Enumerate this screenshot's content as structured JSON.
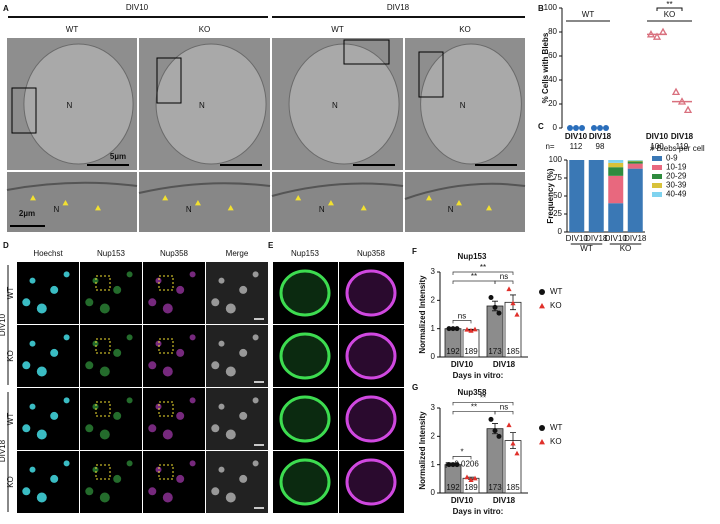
{
  "figure": {
    "panel_labels": [
      "A",
      "B",
      "C",
      "D",
      "E",
      "F",
      "G"
    ],
    "A": {
      "time_points": [
        "DIV10",
        "DIV18"
      ],
      "genotypes": [
        "WT",
        "KO",
        "WT",
        "KO"
      ],
      "nucleus_label": "N",
      "scale_bars": [
        "5µm",
        "2µm"
      ]
    },
    "D": {
      "channels": [
        "Hoechst",
        "Nup153",
        "Nup358",
        "Merge"
      ],
      "genotypes": [
        "WT",
        "KO",
        "WT",
        "KO"
      ],
      "time_points": [
        "DIV10",
        "DIV18"
      ]
    },
    "E": {
      "channels": [
        "Nup153",
        "Nup358"
      ]
    }
  },
  "chart_data": [
    {
      "type": "strip",
      "ylabel": "% Cells with Blebs",
      "categories": [
        "DIV10",
        "DIV18",
        "DIV10",
        "DIV18"
      ],
      "groups": [
        "WT",
        "KO"
      ],
      "points": [
        [
          0,
          0,
          0
        ],
        [
          0,
          0,
          0
        ],
        [
          78,
          76,
          80
        ],
        [
          30,
          22,
          15
        ]
      ],
      "means": [
        null,
        null,
        78,
        22
      ],
      "colors": [
        "#2a6ebb",
        "#2a6ebb",
        "#d9707e",
        "#d9707e"
      ],
      "n_prefix": "n=",
      "n": [
        112,
        98,
        100,
        119
      ],
      "annotations": [
        "**"
      ],
      "ylim": [
        0,
        100
      ],
      "yticks": [
        0,
        20,
        40,
        60,
        80,
        100
      ]
    },
    {
      "type": "stacked_bar",
      "ylabel": "Frequency (%)",
      "legend_title": "# Blebs per cell",
      "categories": [
        "DIV10",
        "DIV18",
        "DIV10",
        "DIV18"
      ],
      "groups": [
        "WT",
        "KO"
      ],
      "series": [
        {
          "name": "0-9",
          "color": "#3a78b5",
          "values": [
            100,
            100,
            40,
            88
          ]
        },
        {
          "name": "10-19",
          "color": "#e8687e",
          "values": [
            0,
            0,
            38,
            7
          ]
        },
        {
          "name": "20-29",
          "color": "#2e8b3e",
          "values": [
            0,
            0,
            12,
            3
          ]
        },
        {
          "name": "30-39",
          "color": "#d8c23a",
          "values": [
            0,
            0,
            6,
            1
          ]
        },
        {
          "name": "40-49",
          "color": "#7fd3ef",
          "values": [
            0,
            0,
            4,
            1
          ]
        }
      ],
      "ylim": [
        0,
        100
      ],
      "yticks": [
        0,
        25,
        50,
        75,
        100
      ]
    },
    {
      "type": "bar_points",
      "title": "Nup153",
      "ylabel": "Normalized Intensity",
      "xlabel": "Days in vitro:",
      "categories": [
        "DIV10",
        "DIV18"
      ],
      "series": [
        {
          "name": "WT",
          "color": "#8c8c8c",
          "marker_color": "#111111",
          "values": [
            1.0,
            1.8
          ],
          "errors": [
            0.01,
            0.17
          ],
          "points": [
            [
              1.0,
              1.0,
              1.0
            ],
            [
              2.1,
              1.75,
              1.55
            ]
          ],
          "n": [
            192,
            173
          ]
        },
        {
          "name": "KO",
          "color": "#ffffff",
          "marker_color": "#e0302a",
          "values": [
            0.96,
            1.93
          ],
          "errors": [
            0.02,
            0.26
          ],
          "points": [
            [
              0.97,
              0.93,
              0.98
            ],
            [
              2.4,
              1.9,
              1.5
            ]
          ],
          "n": [
            189,
            185
          ]
        }
      ],
      "annotations": [
        "ns",
        "**",
        "**",
        "ns"
      ],
      "ylim": [
        0,
        3
      ],
      "yticks": [
        0,
        1,
        2,
        3
      ]
    },
    {
      "type": "bar_points",
      "title": "Nup358",
      "ylabel": "Normalized Intensity",
      "xlabel": "Days in vitro:",
      "categories": [
        "DIV10",
        "DIV18"
      ],
      "series": [
        {
          "name": "WT",
          "color": "#8c8c8c",
          "marker_color": "#111111",
          "values": [
            1.0,
            2.27
          ],
          "errors": [
            0.01,
            0.18
          ],
          "points": [
            [
              1.0,
              1.0,
              1.0
            ],
            [
              2.6,
              2.2,
              2.0
            ]
          ],
          "n": [
            192,
            173
          ]
        },
        {
          "name": "KO",
          "color": "#ffffff",
          "marker_color": "#e0302a",
          "values": [
            0.52,
            1.85
          ],
          "errors": [
            0.04,
            0.28
          ],
          "points": [
            [
              0.56,
              0.46,
              0.52
            ],
            [
              2.4,
              1.75,
              1.4
            ]
          ],
          "n": [
            189,
            185
          ]
        }
      ],
      "annotations": [
        "*",
        "**",
        "**",
        "ns"
      ],
      "note": "p=0.0206",
      "ylim": [
        0,
        3
      ],
      "yticks": [
        0,
        1,
        2,
        3
      ]
    }
  ]
}
